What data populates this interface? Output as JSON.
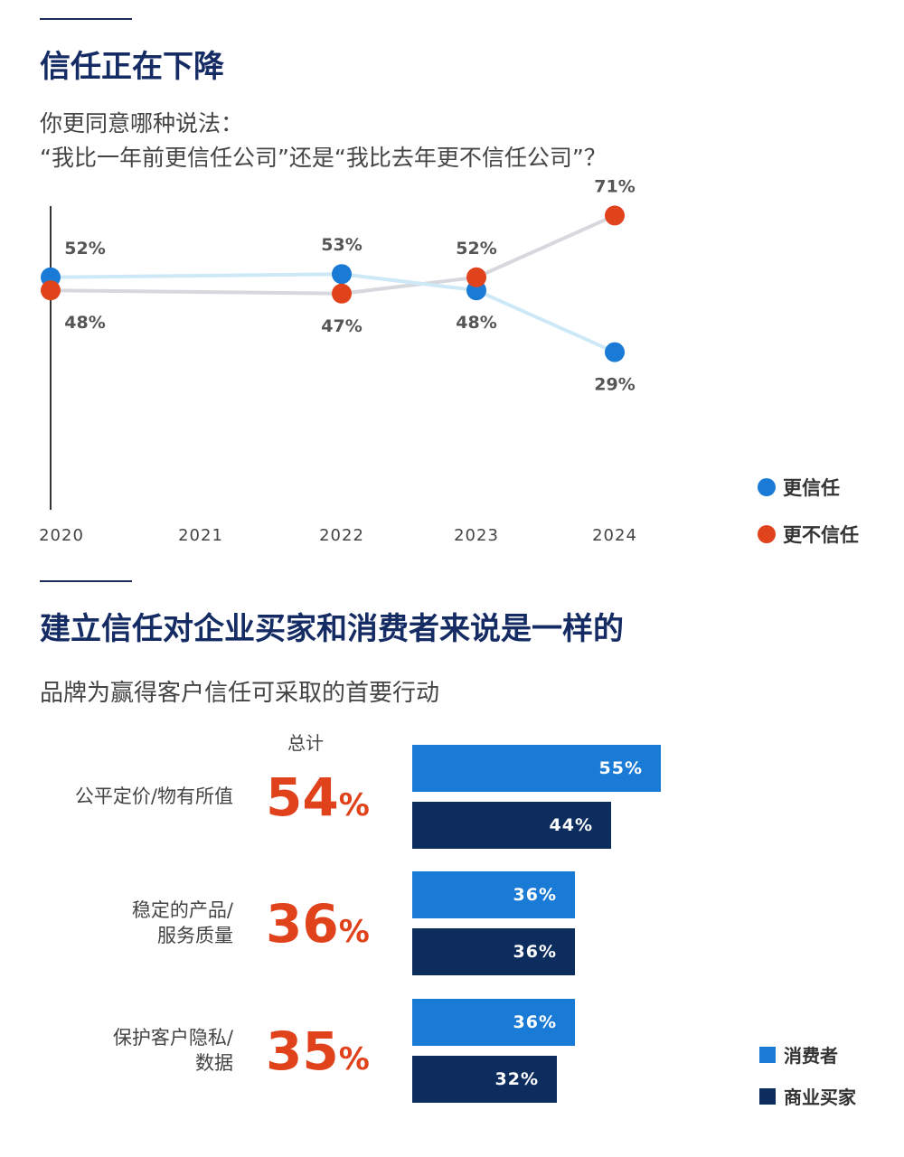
{
  "section1": {
    "title": "信任正在下降",
    "question_line1": "你更同意哪种说法：",
    "question_line2": "“我比一年前更信任公司”还是“我比去年更不信任公司”？"
  },
  "chart_data": [
    {
      "type": "line",
      "x": [
        "2020",
        "2021",
        "2022",
        "2023",
        "2024"
      ],
      "series": [
        {
          "name": "更信任",
          "color": "#1a7bd6",
          "values": [
            52,
            null,
            53,
            48,
            29
          ],
          "labels": [
            "52%",
            null,
            "53%",
            "48%",
            "29%"
          ]
        },
        {
          "name": "更不信任",
          "color": "#e0421b",
          "values": [
            48,
            null,
            47,
            52,
            71
          ],
          "labels": [
            "48%",
            null,
            "47%",
            "52%",
            "71%"
          ]
        }
      ],
      "grid": false,
      "legend": "right"
    },
    {
      "type": "bar",
      "title": "建立信任对企业买家和消费者来说是一样的",
      "subtitle": "品牌为赢得客户信任可采取的首要行动",
      "total_header": "总计",
      "categories": [
        {
          "lines": [
            "公平定价/物有所值"
          ],
          "total": "54",
          "total_unit": "%"
        },
        {
          "lines": [
            "稳定的产品/",
            "服务质量"
          ],
          "total": "36",
          "total_unit": "%"
        },
        {
          "lines": [
            "保护客户隐私/",
            "数据"
          ],
          "total": "35",
          "total_unit": "%"
        }
      ],
      "series": [
        {
          "name": "消费者",
          "color": "#1a7bd6",
          "values": [
            55,
            36,
            36
          ],
          "labels": [
            "55%",
            "36%",
            "36%"
          ]
        },
        {
          "name": "商业买家",
          "color": "#0d2d5e",
          "values": [
            44,
            36,
            32
          ],
          "labels": [
            "44%",
            "36%",
            "32%"
          ]
        }
      ],
      "legend": "bottom-right"
    }
  ],
  "colors": {
    "heading": "#152b63",
    "accent": "#e0421b",
    "consumer": "#1a7bd6",
    "business": "#0d2d5e"
  }
}
